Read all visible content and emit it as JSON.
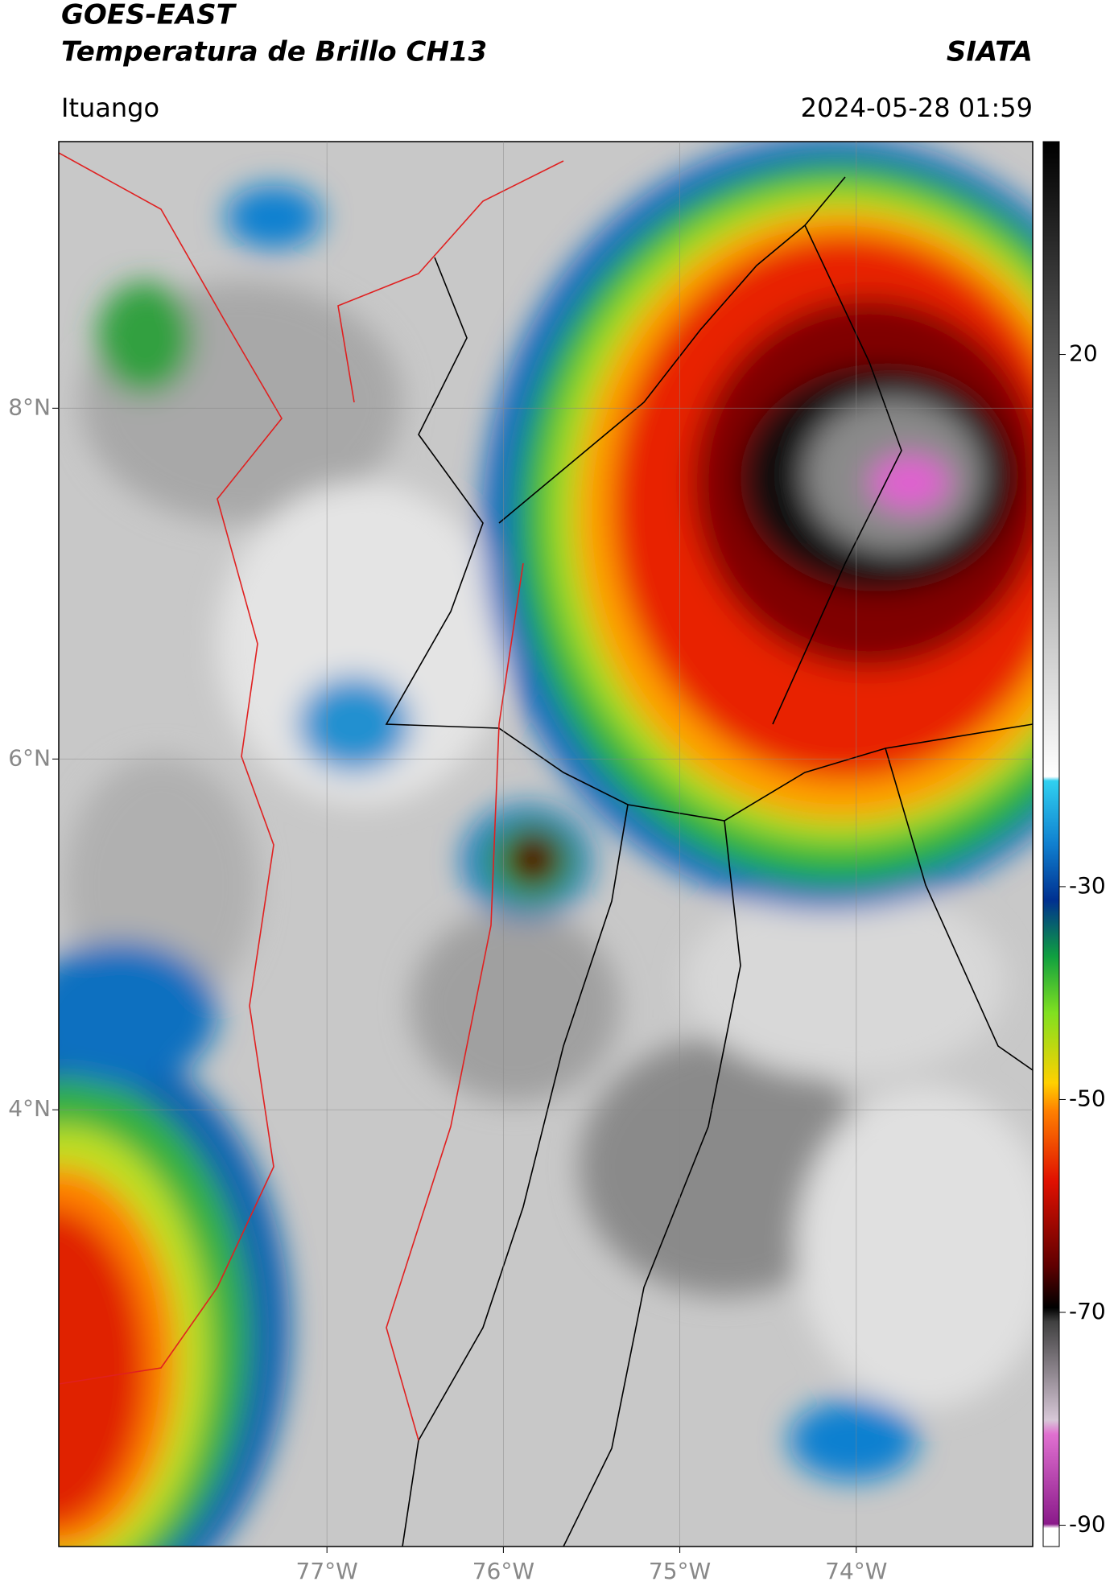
{
  "header": {
    "satellite": "GOES-EAST",
    "product": "Temperatura de Brillo CH13",
    "organization": "SIATA",
    "location": "Ituango",
    "datetime": "2024-05-28 01:59"
  },
  "map": {
    "lat_ticks": [
      {
        "value": 8,
        "label": "8°N"
      },
      {
        "value": 6,
        "label": "6°N"
      },
      {
        "value": 4,
        "label": "4°N"
      }
    ],
    "lon_ticks": [
      {
        "value": -77,
        "label": "77°W"
      },
      {
        "value": -76,
        "label": "76°W"
      },
      {
        "value": -75,
        "label": "75°W"
      },
      {
        "value": -74,
        "label": "74°W"
      }
    ]
  },
  "colorbar": {
    "ticks": [
      20,
      -30,
      -50,
      -70,
      -90
    ]
  }
}
